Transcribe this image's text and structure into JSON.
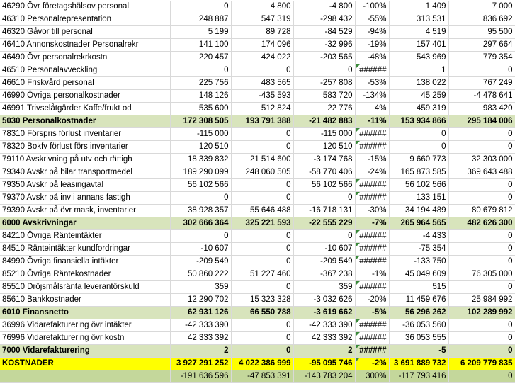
{
  "rows": [
    {
      "label": "46290 Övr företagshälsov personal",
      "c1": "0",
      "c2": "4 800",
      "c3": "-4 800",
      "c4": "-100%",
      "c5": "1 409",
      "c6": "7 000",
      "err": false,
      "style": ""
    },
    {
      "label": "46310 Personalrepresentation",
      "c1": "248 887",
      "c2": "547 319",
      "c3": "-298 432",
      "c4": "-55%",
      "c5": "313 531",
      "c6": "836 692",
      "err": false,
      "style": ""
    },
    {
      "label": "46320 Gåvor till personal",
      "c1": "5 199",
      "c2": "89 728",
      "c3": "-84 529",
      "c4": "-94%",
      "c5": "4 519",
      "c6": "95 500",
      "err": false,
      "style": ""
    },
    {
      "label": "46410 Annonskostnader Personalrekr",
      "c1": "141 100",
      "c2": "174 096",
      "c3": "-32 996",
      "c4": "-19%",
      "c5": "157 401",
      "c6": "297 664",
      "err": false,
      "style": ""
    },
    {
      "label": "46490 Övr personalrekrkostn",
      "c1": "220 457",
      "c2": "424 022",
      "c3": "-203 565",
      "c4": "-48%",
      "c5": "543 969",
      "c6": "779 354",
      "err": false,
      "style": ""
    },
    {
      "label": "46510 Personalavveckling",
      "c1": "0",
      "c2": "0",
      "c3": "0",
      "c4": "######",
      "c5": "1",
      "c6": "0",
      "err": true,
      "style": ""
    },
    {
      "label": "46610 Friskvård personal",
      "c1": "225 756",
      "c2": "483 565",
      "c3": "-257 808",
      "c4": "-53%",
      "c5": "138 022",
      "c6": "767 249",
      "err": false,
      "style": ""
    },
    {
      "label": "46990 Övriga personalkostnader",
      "c1": "148 126",
      "c2": "-435 593",
      "c3": "583 720",
      "c4": "-134%",
      "c5": "45 259",
      "c6": "-4 478 641",
      "err": false,
      "style": ""
    },
    {
      "label": "46991 Trivselåtgärder Kaffe/frukt od",
      "c1": "535 600",
      "c2": "512 824",
      "c3": "22 776",
      "c4": "4%",
      "c5": "459 319",
      "c6": "983 420",
      "err": false,
      "style": ""
    },
    {
      "label": "5030 Personalkostnader",
      "c1": "172 308 505",
      "c2": "193 791 388",
      "c3": "-21 482 883",
      "c4": "-11%",
      "c5": "153 934 866",
      "c6": "295 184 006",
      "err": false,
      "style": "sum"
    },
    {
      "label": "78310 Förspris förlust inventarier",
      "c1": "-115 000",
      "c2": "0",
      "c3": "-115 000",
      "c4": "######",
      "c5": "0",
      "c6": "0",
      "err": true,
      "style": ""
    },
    {
      "label": "78320 Bokfv förlust förs inventarier",
      "c1": "120 510",
      "c2": "0",
      "c3": "120 510",
      "c4": "######",
      "c5": "0",
      "c6": "0",
      "err": true,
      "style": ""
    },
    {
      "label": "79110 Avskrivning på utv och rättigh",
      "c1": "18 339 832",
      "c2": "21 514 600",
      "c3": "-3 174 768",
      "c4": "-15%",
      "c5": "9 660 773",
      "c6": "32 303 000",
      "err": false,
      "style": ""
    },
    {
      "label": "79340 Avskr på bilar transportmedel",
      "c1": "189 290 099",
      "c2": "248 060 505",
      "c3": "-58 770 406",
      "c4": "-24%",
      "c5": "165 873 585",
      "c6": "369 643 488",
      "err": false,
      "style": ""
    },
    {
      "label": "79350 Avskr på leasingavtal",
      "c1": "56 102 566",
      "c2": "0",
      "c3": "56 102 566",
      "c4": "######",
      "c5": "56 102 566",
      "c6": "0",
      "err": true,
      "style": ""
    },
    {
      "label": "79370 Avskr på inv i annans fastigh",
      "c1": "0",
      "c2": "0",
      "c3": "0",
      "c4": "######",
      "c5": "133 151",
      "c6": "0",
      "err": true,
      "style": ""
    },
    {
      "label": "79390 Avskr på övr mask, inventarier",
      "c1": "38 928 357",
      "c2": "55 646 488",
      "c3": "-16 718 131",
      "c4": "-30%",
      "c5": "34 194 489",
      "c6": "80 679 812",
      "err": false,
      "style": ""
    },
    {
      "label": "6000 Avskrivningar",
      "c1": "302 666 364",
      "c2": "325 221 593",
      "c3": "-22 555 229",
      "c4": "-7%",
      "c5": "265 964 565",
      "c6": "482 626 300",
      "err": false,
      "style": "sum"
    },
    {
      "label": "84210 Övriga Ränteintäkter",
      "c1": "0",
      "c2": "0",
      "c3": "0",
      "c4": "######",
      "c5": "-4 433",
      "c6": "0",
      "err": true,
      "style": ""
    },
    {
      "label": "84510 Ränteintäkter kundfordringar",
      "c1": "-10 607",
      "c2": "0",
      "c3": "-10 607",
      "c4": "######",
      "c5": "-75 354",
      "c6": "0",
      "err": true,
      "style": ""
    },
    {
      "label": "84990 Övriga finansiella intäkter",
      "c1": "-209 549",
      "c2": "0",
      "c3": "-209 549",
      "c4": "######",
      "c5": "-133 750",
      "c6": "0",
      "err": true,
      "style": ""
    },
    {
      "label": "85210 Övriga Räntekostnader",
      "c1": "50 860 222",
      "c2": "51 227 460",
      "c3": "-367 238",
      "c4": "-1%",
      "c5": "45 049 609",
      "c6": "76 305 000",
      "err": false,
      "style": ""
    },
    {
      "label": "85510 Dröjsmålsränta leverantörskuld",
      "c1": "359",
      "c2": "0",
      "c3": "359",
      "c4": "######",
      "c5": "515",
      "c6": "0",
      "err": true,
      "style": ""
    },
    {
      "label": "85610 Bankkostnader",
      "c1": "12 290 702",
      "c2": "15 323 328",
      "c3": "-3 032 626",
      "c4": "-20%",
      "c5": "11 459 676",
      "c6": "25 984 992",
      "err": false,
      "style": ""
    },
    {
      "label": "6010 Finansnetto",
      "c1": "62 931 126",
      "c2": "66 550 788",
      "c3": "-3 619 662",
      "c4": "-5%",
      "c5": "56 296 262",
      "c6": "102 289 992",
      "err": false,
      "style": "sum"
    },
    {
      "label": "36996 Vidarefakturering övr intäkter",
      "c1": "-42 333 390",
      "c2": "0",
      "c3": "-42 333 390",
      "c4": "######",
      "c5": "-36 053 560",
      "c6": "0",
      "err": true,
      "style": ""
    },
    {
      "label": "76996 Vidarefakturering övr kostn",
      "c1": "42 333 392",
      "c2": "0",
      "c3": "42 333 392",
      "c4": "######",
      "c5": "36 053 555",
      "c6": "0",
      "err": true,
      "style": ""
    },
    {
      "label": "7000 Vidarefakturering",
      "c1": "2",
      "c2": "0",
      "c3": "2",
      "c4": "######",
      "c5": "-5",
      "c6": "0",
      "err": true,
      "style": "sum"
    },
    {
      "label": "KOSTNADER",
      "c1": "3 927 291 252",
      "c2": "4 022 386 999",
      "c3": "-95 095 746",
      "c4": "-2%",
      "c5": "3 691 889 732",
      "c6": "6 209 779 835",
      "err": true,
      "style": "total"
    },
    {
      "label": "",
      "c1": "-191 636 596",
      "c2": "-47 853 391",
      "c3": "-143 783 204",
      "c4": "300%",
      "c5": "-117 793 416",
      "c6": "0",
      "err": false,
      "style": "net"
    }
  ]
}
